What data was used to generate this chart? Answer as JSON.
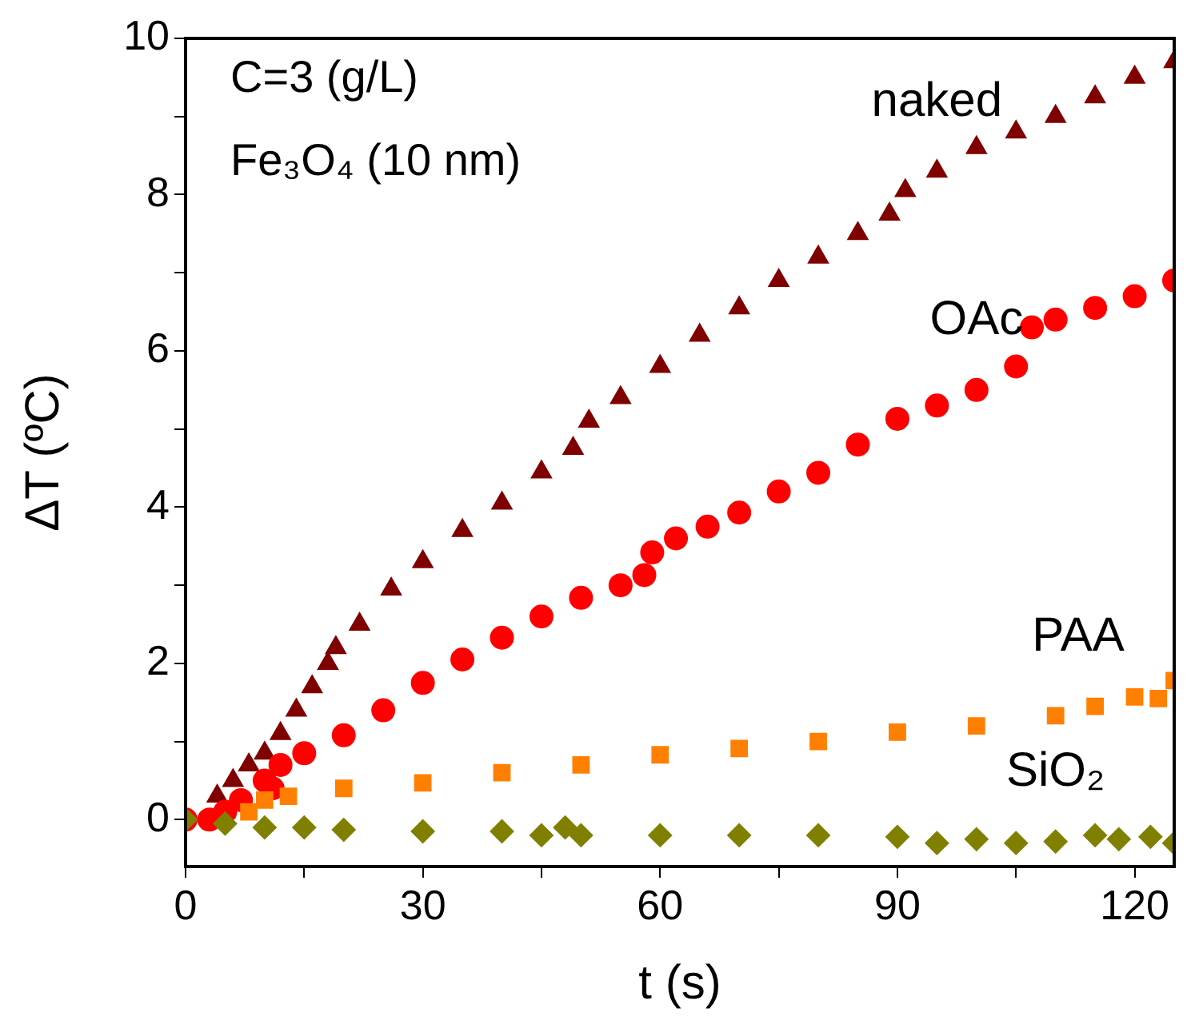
{
  "chart_data": {
    "type": "scatter",
    "xlabel": "t (s)",
    "ylabel": "ΔT (ºC)",
    "annotations": [
      "C=3 (g/L)",
      "Fe₃O₄ (10 nm)"
    ],
    "xlim": [
      0,
      125
    ],
    "ylim": [
      -0.6,
      10
    ],
    "xticks": [
      0,
      {
        "value": 15,
        "label": null
      },
      30,
      {
        "value": 45,
        "label": null
      },
      60,
      {
        "value": 75,
        "label": null
      },
      90,
      {
        "value": 105,
        "label": null
      },
      120
    ],
    "yticks": [
      0,
      {
        "value": 1,
        "label": null
      },
      2,
      {
        "value": 3,
        "label": null
      },
      4,
      {
        "value": 5,
        "label": null
      },
      6,
      {
        "value": 7,
        "label": null
      },
      8,
      {
        "value": 9,
        "label": null
      },
      10
    ],
    "grid": false,
    "legend": false,
    "series": [
      {
        "name": "naked",
        "color": "#800000",
        "marker": "triangle",
        "x": [
          4,
          6,
          8,
          10,
          12,
          14,
          16,
          18,
          19,
          22,
          26,
          30,
          35,
          40,
          45,
          49,
          51,
          55,
          60,
          65,
          70,
          75,
          80,
          85,
          89,
          91,
          95,
          100,
          105,
          110,
          115,
          120,
          125
        ],
        "values": [
          0.3,
          0.5,
          0.7,
          0.85,
          1.1,
          1.4,
          1.7,
          2.0,
          2.2,
          2.5,
          2.95,
          3.3,
          3.7,
          4.05,
          4.45,
          4.75,
          5.1,
          5.4,
          5.8,
          6.2,
          6.55,
          6.9,
          7.2,
          7.5,
          7.75,
          8.05,
          8.3,
          8.6,
          8.8,
          9.0,
          9.25,
          9.5,
          9.7
        ]
      },
      {
        "name": "OAc",
        "color": "#ff0000",
        "marker": "circle",
        "x": [
          0,
          3,
          5,
          7,
          10,
          11,
          12,
          15,
          20,
          25,
          30,
          35,
          40,
          45,
          50,
          55,
          58,
          59,
          62,
          66,
          70,
          75,
          80,
          85,
          90,
          95,
          100,
          105,
          107,
          110,
          115,
          120,
          125
        ],
        "values": [
          0,
          0,
          0.1,
          0.25,
          0.5,
          0.4,
          0.7,
          0.85,
          1.08,
          1.4,
          1.75,
          2.05,
          2.33,
          2.6,
          2.84,
          3.0,
          3.13,
          3.42,
          3.6,
          3.75,
          3.93,
          4.2,
          4.44,
          4.8,
          5.13,
          5.3,
          5.5,
          5.8,
          6.3,
          6.4,
          6.55,
          6.7,
          6.9
        ]
      },
      {
        "name": "PAA",
        "color": "#ff8000",
        "marker": "square",
        "x": [
          8,
          10,
          13,
          20,
          30,
          40,
          50,
          60,
          70,
          80,
          90,
          100,
          110,
          115,
          120,
          123,
          125
        ],
        "values": [
          0.1,
          0.25,
          0.3,
          0.4,
          0.47,
          0.6,
          0.7,
          0.83,
          0.91,
          1.0,
          1.12,
          1.2,
          1.33,
          1.45,
          1.57,
          1.55,
          1.78
        ]
      },
      {
        "name": "SiO₂",
        "color": "#808000",
        "marker": "diamond",
        "x": [
          0,
          5,
          10,
          15,
          20,
          30,
          40,
          45,
          48,
          50,
          60,
          70,
          80,
          90,
          95,
          100,
          105,
          110,
          115,
          118,
          122,
          125
        ],
        "values": [
          0,
          -0.05,
          -0.1,
          -0.1,
          -0.13,
          -0.15,
          -0.15,
          -0.2,
          -0.1,
          -0.2,
          -0.2,
          -0.2,
          -0.2,
          -0.22,
          -0.3,
          -0.25,
          -0.3,
          -0.28,
          -0.2,
          -0.25,
          -0.22,
          -0.3
        ]
      }
    ]
  }
}
